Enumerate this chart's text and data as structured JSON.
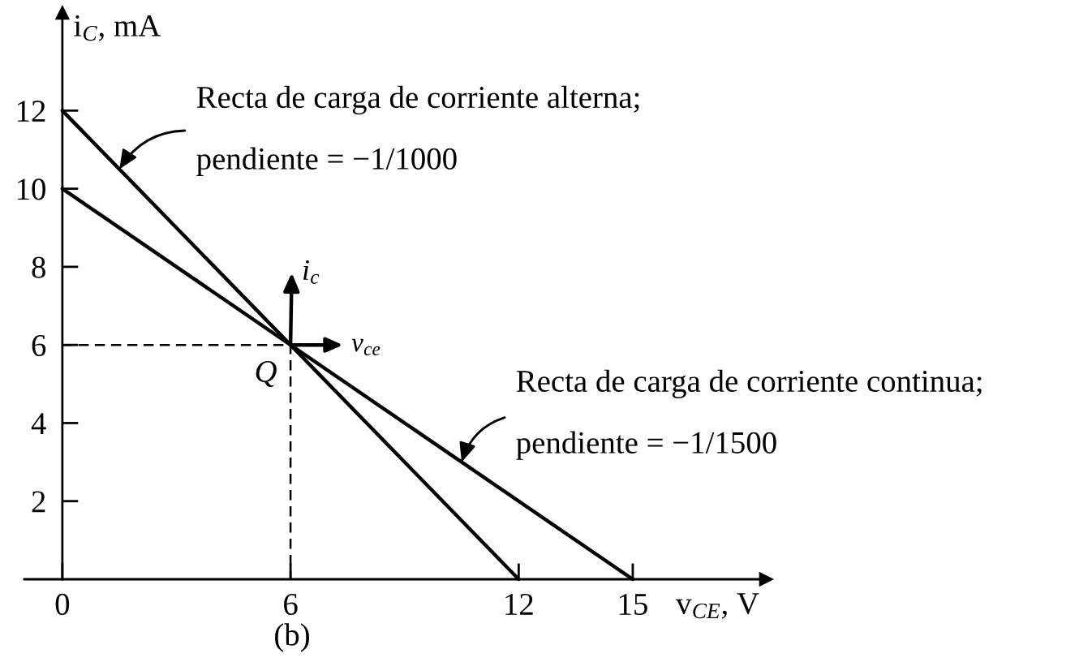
{
  "chart_data": {
    "type": "line",
    "xlabel": "v$_{CE}$, V",
    "ylabel": "i$_{C}$, mA",
    "xlim": [
      -1,
      18.5
    ],
    "ylim": [
      0,
      14.5
    ],
    "xticks": [
      0,
      6,
      12,
      15
    ],
    "yticks": [
      2,
      4,
      6,
      8,
      10,
      12
    ],
    "line_style": "solid",
    "series": [
      {
        "x": [
          0,
          12
        ],
        "values": [
          12,
          0
        ],
        "color": "#000000"
      },
      {
        "x": [
          0,
          15
        ],
        "values": [
          10,
          0
        ],
        "color": "#000000"
      },
      {
        "x": [
          0,
          6,
          6
        ],
        "values": [
          6,
          6,
          0
        ],
        "color": "#000000",
        "line_style": "dashed"
      }
    ],
    "annotations": [
      {
        "text": "Recta de carga de corriente alterna;\npendiente = −1/1000",
        "x": 1.5,
        "y": 10.5
      },
      {
        "text": "Recta de carga de corriente continua;\npendiente = −1/1500",
        "x": 10.5,
        "y": 3
      },
      {
        "text": "Q",
        "x": 6,
        "y": 6
      },
      {
        "text": "i$_{c}$",
        "x": 6,
        "y": 6
      },
      {
        "text": "v$_{ce}$",
        "x": 6,
        "y": 6
      },
      "(b)"
    ]
  }
}
